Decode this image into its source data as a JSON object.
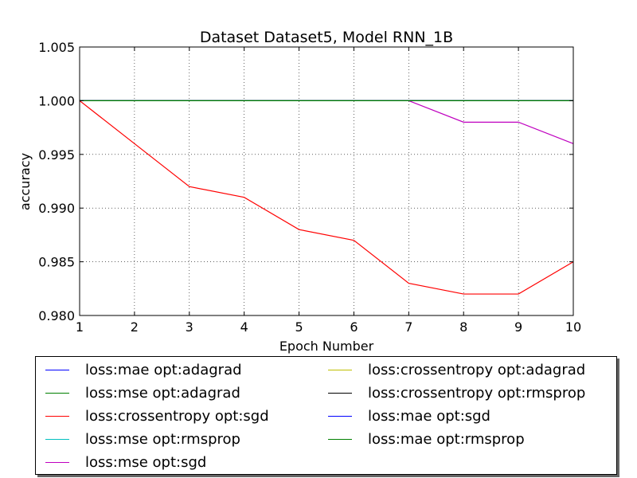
{
  "chart_data": {
    "type": "line",
    "title": "Dataset Dataset5, Model RNN_1B",
    "xlabel": "Epoch Number",
    "ylabel": "accuracy",
    "x": [
      1,
      2,
      3,
      4,
      5,
      6,
      7,
      8,
      9,
      10
    ],
    "xlim": [
      1,
      10
    ],
    "ylim": [
      0.98,
      1.005
    ],
    "xticks": [
      "1",
      "2",
      "3",
      "4",
      "5",
      "6",
      "7",
      "8",
      "9",
      "10"
    ],
    "yticks": [
      "0.980",
      "0.985",
      "0.990",
      "0.995",
      "1.000",
      "1.005"
    ],
    "grid": true,
    "legend_position": "below",
    "series": [
      {
        "name": "loss:mae opt:adagrad",
        "color": "#0000ff",
        "values": [
          1.0,
          1.0,
          1.0,
          1.0,
          1.0,
          1.0,
          1.0,
          1.0,
          1.0,
          1.0
        ]
      },
      {
        "name": "loss:mse opt:adagrad",
        "color": "#008000",
        "values": [
          1.0,
          1.0,
          1.0,
          1.0,
          1.0,
          1.0,
          1.0,
          1.0,
          1.0,
          1.0
        ]
      },
      {
        "name": "loss:crossentropy opt:sgd",
        "color": "#ff0000",
        "values": [
          1.0,
          0.996,
          0.992,
          0.991,
          0.988,
          0.987,
          0.983,
          0.982,
          0.982,
          0.985
        ]
      },
      {
        "name": "loss:mse opt:rmsprop",
        "color": "#00bfbf",
        "values": [
          1.0,
          1.0,
          1.0,
          1.0,
          1.0,
          1.0,
          1.0,
          1.0,
          1.0,
          1.0
        ]
      },
      {
        "name": "loss:mse opt:sgd",
        "color": "#bf00bf",
        "values": [
          1.0,
          1.0,
          1.0,
          1.0,
          1.0,
          1.0,
          1.0,
          0.998,
          0.998,
          0.996
        ]
      },
      {
        "name": "loss:crossentropy opt:adagrad",
        "color": "#bfbf00",
        "values": [
          1.0,
          1.0,
          1.0,
          1.0,
          1.0,
          1.0,
          1.0,
          1.0,
          1.0,
          1.0
        ]
      },
      {
        "name": "loss:crossentropy opt:rmsprop",
        "color": "#000000",
        "values": [
          1.0,
          1.0,
          1.0,
          1.0,
          1.0,
          1.0,
          1.0,
          1.0,
          1.0,
          1.0
        ]
      },
      {
        "name": "loss:mae opt:sgd",
        "color": "#0000ff",
        "values": [
          1.0,
          1.0,
          1.0,
          1.0,
          1.0,
          1.0,
          1.0,
          1.0,
          1.0,
          1.0
        ]
      },
      {
        "name": "loss:mae opt:rmsprop",
        "color": "#008000",
        "values": [
          1.0,
          1.0,
          1.0,
          1.0,
          1.0,
          1.0,
          1.0,
          1.0,
          1.0,
          1.0
        ]
      }
    ]
  }
}
